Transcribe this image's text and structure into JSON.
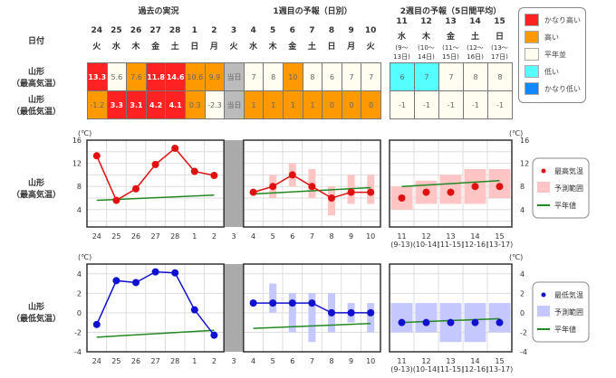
{
  "headers": {
    "past": "過去の実況",
    "week1": "1週目の予報（日別）",
    "week2": "2週目の予報（5日間平均）"
  },
  "row_labels": {
    "date": "日付",
    "high_city": "山形",
    "high_kind": "（最高気温）",
    "low_city": "山形",
    "low_kind": "（最低気温）"
  },
  "colors": {
    "very_high": "#ff2222",
    "high": "#ff9900",
    "normal": "#fffdf0",
    "low": "#55ffff",
    "very_low": "#1188ff",
    "today": "#bbbbbb",
    "line_high": "#e01010",
    "line_low": "#1010d0",
    "band_high": "#ffc4c4",
    "band_low": "#c4c8ff",
    "normal_line": "#228822"
  },
  "days": [
    {
      "d": "24",
      "w": "火",
      "hi": "13.3",
      "hc": "very_high",
      "lo": "-1.2",
      "lc": "high"
    },
    {
      "d": "25",
      "w": "水",
      "hi": "5.6",
      "hc": "normal",
      "lo": "3.3",
      "lc": "very_high"
    },
    {
      "d": "26",
      "w": "木",
      "hi": "7.6",
      "hc": "high",
      "lo": "3.1",
      "lc": "very_high"
    },
    {
      "d": "27",
      "w": "金",
      "hi": "11.8",
      "hc": "very_high",
      "lo": "4.2",
      "lc": "very_high"
    },
    {
      "d": "28",
      "w": "土",
      "hi": "14.6",
      "hc": "very_high",
      "lo": "4.1",
      "lc": "very_high"
    },
    {
      "d": "1",
      "w": "日",
      "hi": "10.6",
      "hc": "high",
      "lo": "0.3",
      "lc": "high"
    },
    {
      "d": "2",
      "w": "月",
      "hi": "9.9",
      "hc": "high",
      "lo": "-2.3",
      "lc": "normal"
    },
    {
      "d": "3",
      "w": "火",
      "hi": "当日",
      "hc": "today",
      "lo": "当日",
      "lc": "today"
    },
    {
      "d": "4",
      "w": "水",
      "hi": "7",
      "hc": "normal",
      "lo": "1",
      "lc": "high"
    },
    {
      "d": "5",
      "w": "木",
      "hi": "8",
      "hc": "normal",
      "lo": "1",
      "lc": "high"
    },
    {
      "d": "6",
      "w": "金",
      "hi": "10",
      "hc": "high",
      "lo": "1",
      "lc": "high"
    },
    {
      "d": "7",
      "w": "土",
      "hi": "8",
      "hc": "normal",
      "lo": "1",
      "lc": "high"
    },
    {
      "d": "8",
      "w": "日",
      "hi": "6",
      "hc": "normal",
      "lo": "0",
      "lc": "high"
    },
    {
      "d": "9",
      "w": "月",
      "hi": "7",
      "hc": "normal",
      "lo": "0",
      "lc": "high"
    },
    {
      "d": "10",
      "w": "火",
      "hi": "7",
      "hc": "normal",
      "lo": "0",
      "lc": "high"
    }
  ],
  "week2": [
    {
      "d": "11",
      "w": "水",
      "r1": "(9～",
      "r2": "13日)",
      "hi": "6",
      "hc": "low",
      "lo": "-1",
      "lc": "normal",
      "tick": "(9-13)"
    },
    {
      "d": "12",
      "w": "木",
      "r1": "(10～",
      "r2": "14日)",
      "hi": "7",
      "hc": "low",
      "lo": "-1",
      "lc": "normal",
      "tick": "(10-14)"
    },
    {
      "d": "13",
      "w": "金",
      "r1": "(11～",
      "r2": "15日)",
      "hi": "7",
      "hc": "normal",
      "lo": "-1",
      "lc": "normal",
      "tick": "(11-15)"
    },
    {
      "d": "14",
      "w": "土",
      "r1": "(12～",
      "r2": "16日)",
      "hi": "8",
      "hc": "normal",
      "lo": "-1",
      "lc": "normal",
      "tick": "(12-16)"
    },
    {
      "d": "15",
      "w": "日",
      "r1": "(13～",
      "r2": "17日)",
      "hi": "8",
      "hc": "normal",
      "lo": "-1",
      "lc": "normal",
      "tick": "(13-17)"
    }
  ],
  "legend": [
    {
      "label": "かなり高い",
      "c": "very_high"
    },
    {
      "label": "高い",
      "c": "high"
    },
    {
      "label": "平年並",
      "c": "normal"
    },
    {
      "label": "低い",
      "c": "low"
    },
    {
      "label": "かなり低い",
      "c": "very_low"
    }
  ],
  "chart_data": [
    {
      "type": "line",
      "title": "山形（最高気温）",
      "ylabel": "(℃)",
      "ylim": [
        1,
        16
      ],
      "yticks": [
        4,
        8,
        12,
        16
      ],
      "past": [
        13.3,
        5.6,
        7.6,
        11.8,
        14.6,
        10.6,
        9.9
      ],
      "past_normal": [
        5.6,
        6.5
      ],
      "week1": [
        7,
        8,
        10,
        8,
        6,
        7,
        7
      ],
      "week1_range": [
        null,
        [
          6,
          10
        ],
        [
          8,
          12
        ],
        [
          6,
          11
        ],
        [
          3,
          8
        ],
        [
          5,
          10
        ],
        [
          5,
          10
        ]
      ],
      "week1_normal": [
        6.7,
        7.8
      ],
      "week2": [
        6,
        7,
        7,
        8,
        8
      ],
      "week2_range": [
        [
          4,
          8
        ],
        [
          5,
          9
        ],
        [
          5,
          10
        ],
        [
          5,
          11
        ],
        [
          6,
          11
        ]
      ],
      "week2_normal": [
        8,
        9
      ],
      "legend": [
        "最高気温",
        "予測範囲",
        "平年値"
      ]
    },
    {
      "type": "line",
      "title": "山形（最低気温）",
      "ylabel": "(℃)",
      "ylim": [
        -4,
        5
      ],
      "yticks": [
        -4,
        -2,
        0,
        2,
        4
      ],
      "past": [
        -1.2,
        3.3,
        3.1,
        4.2,
        4.1,
        0.3,
        -2.3
      ],
      "past_normal": [
        -2.5,
        -1.8
      ],
      "week1": [
        1,
        1,
        1,
        1,
        0,
        0,
        0
      ],
      "week1_range": [
        null,
        [
          0,
          3
        ],
        [
          -2,
          2
        ],
        [
          -3,
          2
        ],
        [
          -2,
          2
        ],
        [
          -1,
          1
        ],
        [
          -2,
          1
        ]
      ],
      "week1_normal": [
        -1.6,
        -1.1
      ],
      "week2": [
        -1,
        -1,
        -1,
        -1,
        -1
      ],
      "week2_range": [
        [
          -2,
          1
        ],
        [
          -2,
          1
        ],
        [
          -3,
          1
        ],
        [
          -3,
          1
        ],
        [
          -2,
          1
        ]
      ],
      "week2_normal": [
        -1,
        -0.6
      ],
      "legend": [
        "最低気温",
        "予測範囲",
        "平年値"
      ]
    }
  ]
}
